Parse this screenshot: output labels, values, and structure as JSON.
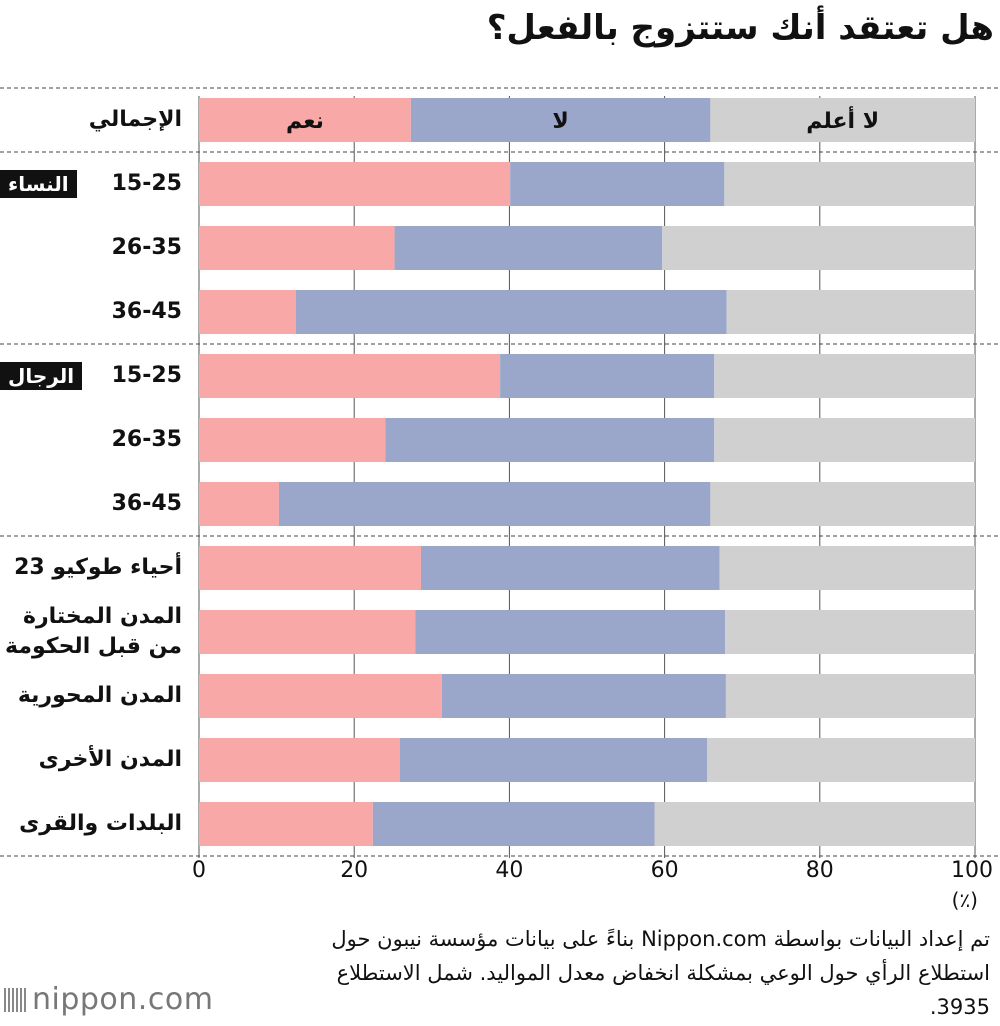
{
  "title": "هل تعتقد أنك ستتزوج بالفعل؟",
  "chart_data": {
    "type": "bar",
    "orientation": "horizontal",
    "stacked": true,
    "title": "هل تعتقد أنك ستتزوج بالفعل؟",
    "xlim": [
      0,
      100
    ],
    "xticks": [
      "0",
      "20",
      "40",
      "60",
      "80",
      "100"
    ],
    "unit": "(٪)",
    "series_labels_on_first_bar": [
      "نعم",
      "لا",
      "لا أعلم"
    ],
    "series": [
      {
        "name": "نعم",
        "color": "#f9a8a8"
      },
      {
        "name": "لا",
        "color": "#9ba7ca"
      },
      {
        "name": "لا أعلم",
        "color": "#d0d0d0"
      }
    ],
    "rows": [
      {
        "label": "الإجمالي",
        "group": "",
        "values": [
          27.3,
          38.6,
          34.1
        ]
      },
      {
        "label": "15-25",
        "group": "النساء",
        "values": [
          40.1,
          27.6,
          32.3
        ]
      },
      {
        "label": "26-35",
        "group": "",
        "values": [
          25.2,
          34.5,
          40.3
        ]
      },
      {
        "label": "36-45",
        "group": "",
        "values": [
          12.5,
          55.5,
          32.0
        ]
      },
      {
        "label": "15-25",
        "group": "الرجال",
        "values": [
          38.8,
          27.6,
          33.6
        ]
      },
      {
        "label": "26-35",
        "group": "",
        "values": [
          24.0,
          42.4,
          33.6
        ]
      },
      {
        "label": "36-45",
        "group": "",
        "values": [
          10.3,
          55.6,
          34.1
        ]
      },
      {
        "label": "أحياء طوكيو 23",
        "group": "",
        "values": [
          28.6,
          38.5,
          32.9
        ]
      },
      {
        "label": "المدن المختارة\nمن قبل الحكومة",
        "group": "",
        "values": [
          27.9,
          39.9,
          32.2
        ]
      },
      {
        "label": "المدن المحورية",
        "group": "",
        "values": [
          31.3,
          36.6,
          32.1
        ]
      },
      {
        "label": "المدن الأخرى",
        "group": "",
        "values": [
          25.9,
          39.6,
          34.5
        ]
      },
      {
        "label": "البلدات والقرى",
        "group": "",
        "values": [
          22.4,
          36.3,
          41.3
        ]
      }
    ]
  },
  "source_note": "تم إعداد البيانات بواسطة Nippon.com بناءً على بيانات مؤسسة نيبون حول استطلاع الرأي حول الوعي بمشكلة انخفاض معدل المواليد. شمل الاستطلاع 3935.",
  "logo_text": "nippon.com"
}
